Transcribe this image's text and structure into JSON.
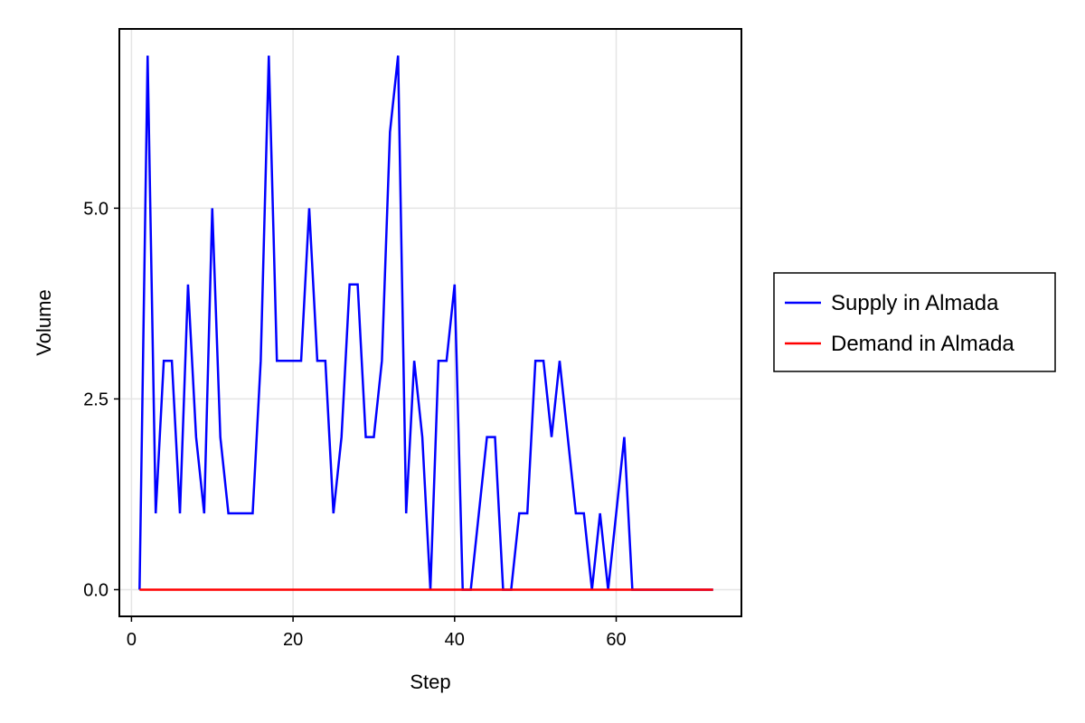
{
  "chart_data": {
    "type": "line",
    "title": "",
    "xlabel": "Step",
    "ylabel": "Volume",
    "xlim": [
      -1.5,
      75.5
    ],
    "ylim": [
      -0.35,
      7.35
    ],
    "x_ticks": [
      0,
      20,
      40,
      60
    ],
    "x_tick_labels": [
      "0",
      "20",
      "40",
      "60"
    ],
    "y_ticks": [
      0.0,
      2.5,
      5.0
    ],
    "y_tick_labels": [
      "0.0",
      "2.5",
      "5.0"
    ],
    "grid": true,
    "legend_position": "right",
    "series": [
      {
        "name": "Supply in Almada",
        "color": "#0000ff",
        "x": [
          1,
          2,
          3,
          4,
          5,
          6,
          7,
          8,
          9,
          10,
          11,
          12,
          13,
          14,
          15,
          16,
          17,
          18,
          19,
          20,
          21,
          22,
          23,
          24,
          25,
          26,
          27,
          28,
          29,
          30,
          31,
          32,
          33,
          34,
          35,
          36,
          37,
          38,
          39,
          40,
          41,
          42,
          43,
          44,
          45,
          46,
          47,
          48,
          49,
          50,
          51,
          52,
          53,
          54,
          55,
          56,
          57,
          58,
          59,
          60,
          61,
          62,
          63,
          64,
          65,
          66,
          67,
          68,
          69,
          70,
          71,
          72
        ],
        "values": [
          0,
          7,
          1,
          3,
          3,
          1,
          4,
          2,
          1,
          5,
          2,
          1,
          1,
          1,
          1,
          3,
          7,
          3,
          3,
          3,
          3,
          5,
          3,
          3,
          1,
          2,
          4,
          4,
          2,
          2,
          3,
          6,
          7,
          1,
          3,
          2,
          0,
          3,
          3,
          4,
          0,
          0,
          1,
          2,
          2,
          0,
          0,
          1,
          1,
          3,
          3,
          2,
          3,
          2,
          1,
          1,
          0,
          1,
          0,
          1,
          2,
          0,
          0,
          0,
          0,
          0,
          0,
          0,
          0,
          0,
          0,
          0
        ]
      },
      {
        "name": "Demand in Almada",
        "color": "#ff0000",
        "x": [
          1,
          72
        ],
        "values": [
          0,
          0
        ]
      }
    ]
  }
}
